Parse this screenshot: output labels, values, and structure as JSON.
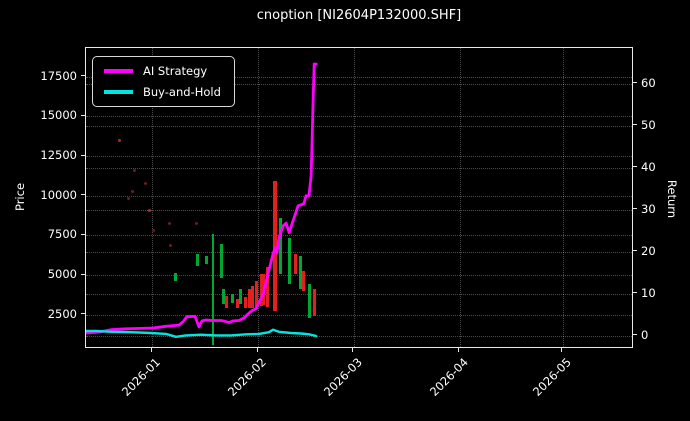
{
  "chart_data": {
    "type": "line+candlestick",
    "title": "cnoption [NI2604P132000.SHF]",
    "x_unit": "days from 2026-01-01",
    "x_range": [
      -19.3,
      140.9
    ],
    "x_ticks": [
      {
        "d": 0,
        "label": "2026-01"
      },
      {
        "d": 31,
        "label": "2026-02"
      },
      {
        "d": 59,
        "label": "2026-03"
      },
      {
        "d": 90,
        "label": "2026-04"
      },
      {
        "d": 120,
        "label": "2026-05"
      }
    ],
    "left_axis": {
      "label": "Price",
      "range": [
        350,
        19300
      ],
      "ticks": [
        2500,
        5000,
        7500,
        10000,
        12500,
        15000,
        17500
      ]
    },
    "right_axis": {
      "label": "Return",
      "range": [
        -3.2,
        68.5
      ],
      "ticks": [
        0,
        10,
        20,
        30,
        40,
        50,
        60
      ]
    },
    "grid": {
      "dotted": true
    },
    "legend": {
      "position": "upper-left",
      "items": [
        {
          "label": "AI Strategy",
          "color": "#ff00ff"
        },
        {
          "label": "Buy-and-Hold",
          "color": "#00e5e0"
        }
      ]
    },
    "series": [
      {
        "name": "AI Strategy",
        "axis": "return",
        "color": "#ff00ff",
        "stroke_width": 2.8,
        "points": [
          [
            -19.3,
            0.6
          ],
          [
            -14.9,
            0.9
          ],
          [
            -12.0,
            1.4
          ],
          [
            -7.6,
            1.6
          ],
          [
            -3.2,
            1.7
          ],
          [
            0.3,
            1.8
          ],
          [
            4.1,
            2.2
          ],
          [
            7.9,
            2.5
          ],
          [
            9.1,
            3.3
          ],
          [
            10.2,
            4.5
          ],
          [
            12.6,
            4.6
          ],
          [
            13.7,
            2.1
          ],
          [
            14.6,
            3.5
          ],
          [
            15.8,
            3.7
          ],
          [
            17.8,
            3.6
          ],
          [
            20.2,
            3.6
          ],
          [
            21.3,
            3.4
          ],
          [
            22.5,
            3.1
          ],
          [
            23.7,
            3.5
          ],
          [
            25.4,
            3.6
          ],
          [
            26.9,
            4.2
          ],
          [
            28.4,
            5.4
          ],
          [
            29.2,
            5.9
          ],
          [
            30.4,
            6.4
          ],
          [
            32.5,
            9.9
          ],
          [
            33.9,
            14.7
          ],
          [
            35.4,
            19.5
          ],
          [
            36.0,
            20.9
          ],
          [
            36.5,
            19.7
          ],
          [
            37.1,
            23.3
          ],
          [
            38.3,
            26.1
          ],
          [
            39.2,
            26.8
          ],
          [
            40.1,
            24.5
          ],
          [
            41.2,
            27.3
          ],
          [
            42.7,
            30.9
          ],
          [
            44.4,
            31.4
          ],
          [
            45.0,
            33.3
          ],
          [
            45.9,
            33.3
          ],
          [
            46.5,
            38.0
          ],
          [
            46.8,
            46.4
          ],
          [
            47.1,
            55.9
          ],
          [
            47.4,
            64.7
          ],
          [
            48.0,
            64.7
          ]
        ]
      },
      {
        "name": "Buy-and-Hold",
        "axis": "return",
        "color": "#00e5e0",
        "stroke_width": 2.4,
        "points": [
          [
            -19.3,
            1.1
          ],
          [
            -16.4,
            1.1
          ],
          [
            -12.0,
            0.9
          ],
          [
            -6.1,
            0.8
          ],
          [
            -0.3,
            0.6
          ],
          [
            4.1,
            0.4
          ],
          [
            7.0,
            -0.3
          ],
          [
            9.9,
            0.05
          ],
          [
            14.3,
            0.2
          ],
          [
            18.7,
            0.05
          ],
          [
            23.1,
            0.05
          ],
          [
            27.5,
            0.3
          ],
          [
            31.3,
            0.4
          ],
          [
            34.2,
            0.8
          ],
          [
            35.4,
            1.4
          ],
          [
            37.1,
            0.9
          ],
          [
            40.6,
            0.6
          ],
          [
            43.5,
            0.5
          ],
          [
            45.9,
            0.3
          ],
          [
            48.0,
            -0.1
          ]
        ]
      }
    ],
    "price_bars": [
      {
        "d": 7.0,
        "low": 4630,
        "high": 5140,
        "dir": "up",
        "w": 3
      },
      {
        "d": 13.2,
        "low": 5570,
        "high": 6330,
        "dir": "up",
        "w": 3
      },
      {
        "d": 15.8,
        "low": 5700,
        "high": 6200,
        "dir": "up",
        "w": 3
      },
      {
        "d": 17.8,
        "low": 600,
        "high": 7580,
        "dir": "up",
        "w": 1.5
      },
      {
        "d": 20.2,
        "low": 4820,
        "high": 6950,
        "dir": "up",
        "w": 3
      },
      {
        "d": 20.8,
        "low": 3190,
        "high": 4130,
        "dir": "up",
        "w": 3
      },
      {
        "d": 21.9,
        "low": 2950,
        "high": 3700,
        "dir": "down",
        "w": 3
      },
      {
        "d": 23.4,
        "low": 3250,
        "high": 3820,
        "dir": "up",
        "w": 3
      },
      {
        "d": 25.1,
        "low": 2940,
        "high": 3500,
        "dir": "down",
        "w": 3
      },
      {
        "d": 26.0,
        "low": 3200,
        "high": 4130,
        "dir": "up",
        "w": 3
      },
      {
        "d": 27.2,
        "low": 2900,
        "high": 3600,
        "dir": "down",
        "w": 3
      },
      {
        "d": 28.4,
        "low": 2940,
        "high": 4130,
        "dir": "down",
        "w": 3
      },
      {
        "d": 29.5,
        "low": 2900,
        "high": 4300,
        "dir": "down",
        "w": 3
      },
      {
        "d": 30.4,
        "low": 2880,
        "high": 4630,
        "dir": "down",
        "w": 3
      },
      {
        "d": 31.9,
        "low": 3060,
        "high": 5070,
        "dir": "down",
        "w": 3
      },
      {
        "d": 32.7,
        "low": 3100,
        "high": 5100,
        "dir": "down",
        "w": 3
      },
      {
        "d": 33.9,
        "low": 3000,
        "high": 5500,
        "dir": "down",
        "w": 3
      },
      {
        "d": 36.0,
        "low": 2750,
        "high": 10910,
        "dir": "down",
        "w": 4
      },
      {
        "d": 37.7,
        "low": 5070,
        "high": 8590,
        "dir": "up",
        "w": 3
      },
      {
        "d": 40.1,
        "low": 4450,
        "high": 7330,
        "dir": "up",
        "w": 3
      },
      {
        "d": 41.8,
        "low": 5070,
        "high": 6330,
        "dir": "down",
        "w": 3
      },
      {
        "d": 43.3,
        "low": 4130,
        "high": 6200,
        "dir": "up",
        "w": 3
      },
      {
        "d": 44.2,
        "low": 4000,
        "high": 5260,
        "dir": "down",
        "w": 3
      },
      {
        "d": 45.9,
        "low": 2310,
        "high": 4450,
        "dir": "up",
        "w": 3
      },
      {
        "d": 47.4,
        "low": 2440,
        "high": 4130,
        "dir": "down",
        "w": 3
      }
    ],
    "price_dots": [
      {
        "d": -9.4,
        "price": 13480,
        "bright": true
      },
      {
        "d": -7.0,
        "price": 9840,
        "bright": false
      },
      {
        "d": -5.6,
        "price": 10280,
        "bright": false
      },
      {
        "d": -5.0,
        "price": 11600,
        "bright": false
      },
      {
        "d": -1.8,
        "price": 10780,
        "bright": false
      },
      {
        "d": -0.6,
        "price": 9090,
        "bright": true
      },
      {
        "d": 0.3,
        "price": 7830,
        "bright": false
      },
      {
        "d": 5.0,
        "price": 8270,
        "bright": false
      },
      {
        "d": 5.3,
        "price": 6890,
        "bright": false
      },
      {
        "d": 12.9,
        "price": 8270,
        "bright": false
      }
    ],
    "colors": {
      "background": "#000000",
      "text": "#ffffff",
      "up": "#00a832",
      "down": "#e32020",
      "dot": "#6e1c1c",
      "dot_bright": "#a33030",
      "grid": "rgba(255,255,255,0.30)"
    }
  }
}
